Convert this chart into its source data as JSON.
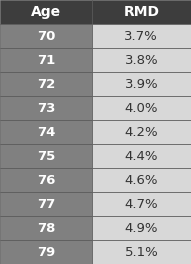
{
  "header": [
    "Age",
    "RMD"
  ],
  "rows": [
    [
      70,
      "3.7%"
    ],
    [
      71,
      "3.8%"
    ],
    [
      72,
      "3.9%"
    ],
    [
      73,
      "4.0%"
    ],
    [
      74,
      "4.2%"
    ],
    [
      75,
      "4.4%"
    ],
    [
      76,
      "4.6%"
    ],
    [
      77,
      "4.7%"
    ],
    [
      78,
      "4.9%"
    ],
    [
      79,
      "5.1%"
    ]
  ],
  "header_bg": "#3d3d3d",
  "row_bg_dark": "#808080",
  "row_bg_light": "#d8d8d8",
  "header_text_color": "#ffffff",
  "age_text_color": "#ffffff",
  "rmd_text_color": "#333333",
  "border_color": "#555555",
  "col_split": 0.48,
  "font_size_header": 10,
  "font_size_row": 9.5
}
